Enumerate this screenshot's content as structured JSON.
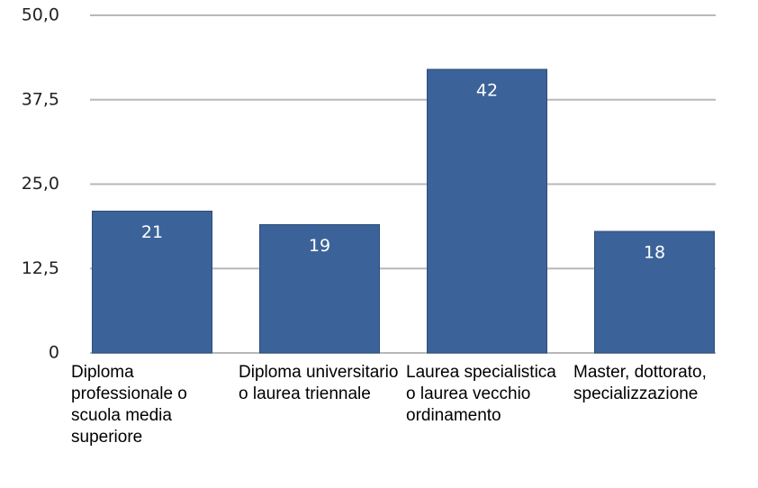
{
  "chart_data": {
    "type": "bar",
    "categories": [
      "Diploma professionale o scuola media superiore",
      "Diploma universitario o laurea triennale",
      "Laurea specialistica o laurea vecchio ordinamento",
      "Master, dottorato, specializzazione"
    ],
    "values": [
      21,
      19,
      42,
      18
    ],
    "color": "#3b6399",
    "ylim": [
      0,
      50
    ],
    "yticks": [
      0,
      {
        "value": 12.5,
        "label": "12,5"
      },
      {
        "value": 25,
        "label": "25,0"
      },
      {
        "value": 37.5,
        "label": "37,5"
      },
      {
        "value": 50,
        "label": "50,0"
      }
    ],
    "grid": true
  }
}
